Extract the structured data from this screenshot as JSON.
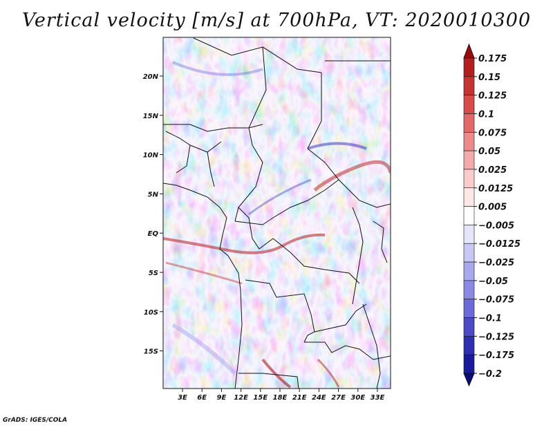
{
  "title": "Vertical velocity [m/s] at 700hPa, VT: 2020010300",
  "credit": "GrADS: IGES/COLA",
  "map": {
    "variable": "Vertical velocity",
    "units": "m/s",
    "level": "700hPa",
    "valid_time": "2020010300",
    "lat_labels": [
      "20N",
      "15N",
      "10N",
      "5N",
      "EQ",
      "5S",
      "10S",
      "15S"
    ],
    "lon_labels": [
      "3E",
      "6E",
      "9E",
      "12E",
      "15E",
      "18E",
      "21E",
      "24E",
      "27E",
      "30E",
      "33E"
    ],
    "colorbar": {
      "levels": [
        "0.175",
        "0.15",
        "0.125",
        "0.1",
        "0.075",
        "0.05",
        "0.025",
        "0.0125",
        "0.005",
        "−0.005",
        "−0.0125",
        "−0.025",
        "−0.05",
        "−0.075",
        "−0.1",
        "−0.125",
        "−0.175",
        "−0.2"
      ],
      "colors": [
        "#9e0a0a",
        "#b51e1e",
        "#c83232",
        "#d94a4a",
        "#e46868",
        "#ee8a8a",
        "#f5aaaa",
        "#fbcccc",
        "#fde8e8",
        "#ffffff",
        "#e6e6fb",
        "#c8c8f5",
        "#a8a8ee",
        "#8a8ae6",
        "#6a6ad9",
        "#4a4ac8",
        "#2e2eb5",
        "#1a1a9e",
        "#0c0c80"
      ]
    }
  }
}
